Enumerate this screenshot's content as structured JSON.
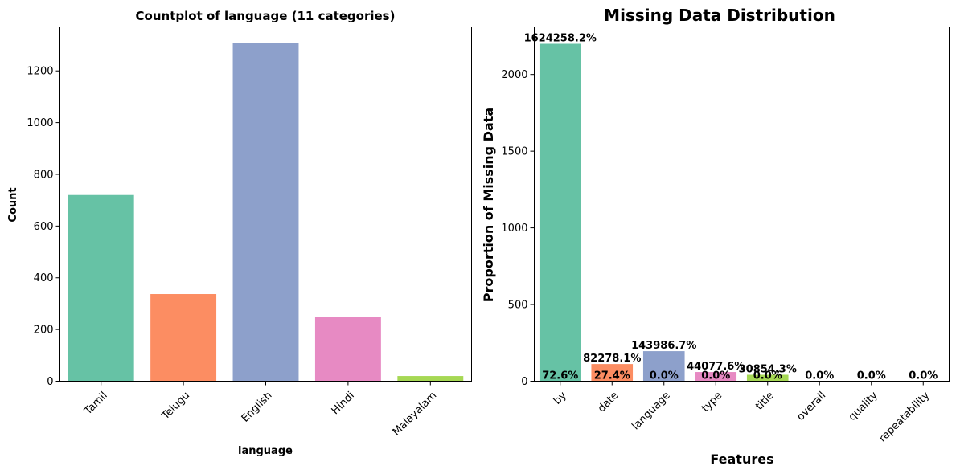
{
  "chart_data": [
    {
      "type": "bar",
      "title": "Countplot of language (11 categories)",
      "xlabel": "language",
      "ylabel": "Count",
      "categories": [
        "Tamil",
        "Telugu",
        "English",
        "Hindi",
        "Malayalam"
      ],
      "values": [
        720,
        337,
        1308,
        250,
        20
      ],
      "ylim": [
        0,
        1370
      ],
      "yticks": [
        0,
        200,
        400,
        600,
        800,
        1000,
        1200
      ],
      "colors": [
        "#66c2a5",
        "#fc8d62",
        "#8da0cb",
        "#e78ac3",
        "#a6d854"
      ],
      "grid": false
    },
    {
      "type": "bar",
      "title": "Missing Data Distribution",
      "xlabel": "Features",
      "ylabel": "Proportion of Missing Data",
      "categories": [
        "by",
        "date",
        "language",
        "type",
        "title",
        "overall",
        "quality",
        "repeatability"
      ],
      "values": [
        2200,
        112,
        196,
        60,
        42,
        0,
        0,
        0
      ],
      "ylim": [
        0,
        2310
      ],
      "yticks": [
        0,
        500,
        1000,
        1500,
        2000
      ],
      "colors": [
        "#66c2a5",
        "#fc8d62",
        "#8da0cb",
        "#e78ac3",
        "#a6d854",
        "#ffd92f",
        "#e5c494",
        "#b3b3b3"
      ],
      "top_labels": [
        "1624258.2%",
        "82278.1%",
        "143986.7%",
        "44077.6%",
        "30854.3%",
        "",
        "",
        ""
      ],
      "bottom_labels": [
        "72.6%",
        "27.4%",
        "0.0%",
        "0.0%",
        "0.0%",
        "0.0%",
        "0.0%",
        "0.0%"
      ],
      "grid": false
    }
  ]
}
